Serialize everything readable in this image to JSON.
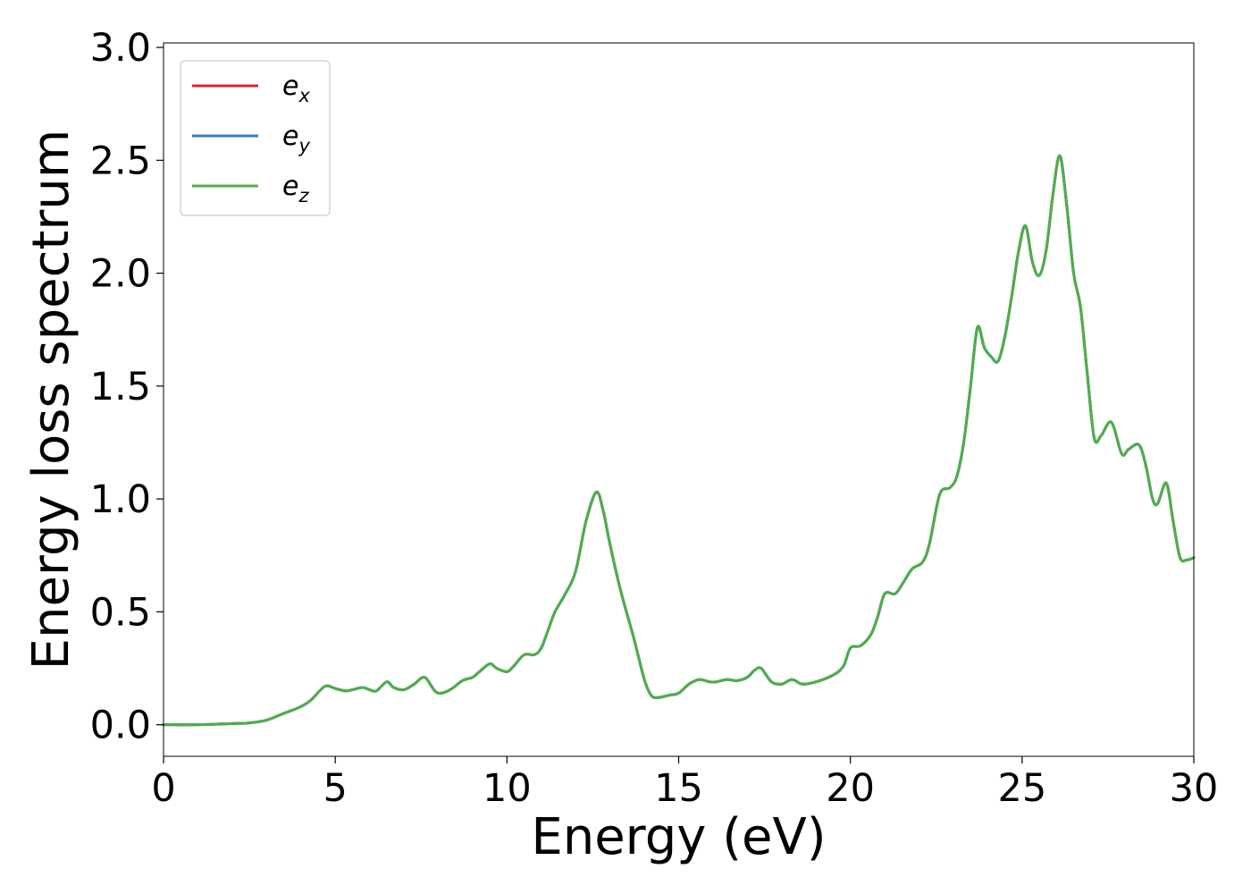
{
  "chart_data": {
    "type": "line",
    "xlabel": "Energy (eV)",
    "ylabel": "Energy loss spectrum",
    "xlim": [
      0,
      30
    ],
    "ylim": [
      -0.14,
      3.02
    ],
    "x_ticks": [
      "0",
      "5",
      "10",
      "15",
      "20",
      "25",
      "30"
    ],
    "y_ticks": [
      "0.0",
      "0.5",
      "1.0",
      "1.5",
      "2.0",
      "2.5",
      "3.0"
    ],
    "x_tick_values": [
      0,
      5,
      10,
      15,
      20,
      25,
      30
    ],
    "y_tick_values": [
      0.0,
      0.5,
      1.0,
      1.5,
      2.0,
      2.5,
      3.0
    ],
    "grid": false,
    "legend_position": "upper-left",
    "series": [
      {
        "name": "e",
        "subscript": "x",
        "color": "#d62728"
      },
      {
        "name": "e",
        "subscript": "y",
        "color": "#377eb8"
      },
      {
        "name": "e",
        "subscript": "z",
        "color": "#4daf4a"
      }
    ],
    "x": [
      0,
      1,
      2,
      2.5,
      3.0,
      3.5,
      4.0,
      4.3,
      4.7,
      5.0,
      5.3,
      5.5,
      5.8,
      6.0,
      6.2,
      6.5,
      6.7,
      7.0,
      7.3,
      7.6,
      7.9,
      8.1,
      8.4,
      8.7,
      9.0,
      9.2,
      9.5,
      9.7,
      10.0,
      10.2,
      10.5,
      10.8,
      11.0,
      11.2,
      11.4,
      11.7,
      12.0,
      12.3,
      12.6,
      12.8,
      13.0,
      13.3,
      13.7,
      14.0,
      14.2,
      14.4,
      14.7,
      15.0,
      15.3,
      15.6,
      15.9,
      16.1,
      16.4,
      16.7,
      17.0,
      17.2,
      17.4,
      17.7,
      18.0,
      18.3,
      18.6,
      19.0,
      19.5,
      19.8,
      20.0,
      20.3,
      20.6,
      20.8,
      21.0,
      21.3,
      21.5,
      21.8,
      22.1,
      22.3,
      22.6,
      22.9,
      23.1,
      23.3,
      23.5,
      23.7,
      23.9,
      24.1,
      24.3,
      24.5,
      24.7,
      24.9,
      25.1,
      25.3,
      25.5,
      25.7,
      25.9,
      26.1,
      26.3,
      26.5,
      26.7,
      26.9,
      27.1,
      27.3,
      27.6,
      27.9,
      28.1,
      28.4,
      28.6,
      28.8,
      28.95,
      29.2,
      29.4,
      29.6,
      29.8,
      30.0
    ],
    "y": [
      0.0,
      0.0,
      0.005,
      0.008,
      0.02,
      0.05,
      0.08,
      0.11,
      0.17,
      0.16,
      0.15,
      0.155,
      0.165,
      0.155,
      0.15,
      0.19,
      0.165,
      0.155,
      0.18,
      0.21,
      0.15,
      0.14,
      0.16,
      0.195,
      0.21,
      0.235,
      0.27,
      0.25,
      0.235,
      0.26,
      0.31,
      0.31,
      0.34,
      0.42,
      0.5,
      0.58,
      0.68,
      0.9,
      1.03,
      0.95,
      0.8,
      0.6,
      0.38,
      0.2,
      0.13,
      0.12,
      0.13,
      0.14,
      0.18,
      0.2,
      0.19,
      0.19,
      0.2,
      0.195,
      0.21,
      0.24,
      0.25,
      0.19,
      0.18,
      0.2,
      0.18,
      0.19,
      0.22,
      0.26,
      0.34,
      0.35,
      0.4,
      0.48,
      0.58,
      0.58,
      0.62,
      0.69,
      0.72,
      0.8,
      1.02,
      1.05,
      1.1,
      1.25,
      1.5,
      1.76,
      1.67,
      1.63,
      1.61,
      1.72,
      1.9,
      2.1,
      2.21,
      2.05,
      1.99,
      2.1,
      2.35,
      2.52,
      2.3,
      2.0,
      1.85,
      1.55,
      1.27,
      1.28,
      1.34,
      1.2,
      1.22,
      1.24,
      1.15,
      1.0,
      0.98,
      1.07,
      0.9,
      0.74,
      0.73,
      0.74
    ]
  }
}
